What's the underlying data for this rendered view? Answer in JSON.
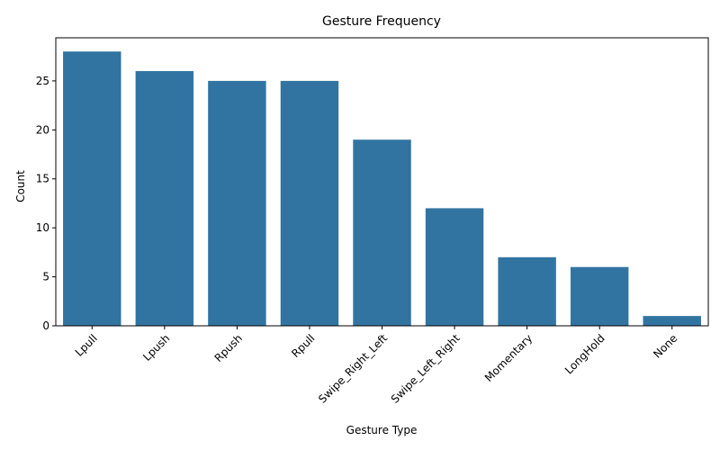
{
  "chart_data": {
    "type": "bar",
    "title": "Gesture Frequency",
    "xlabel": "Gesture Type",
    "ylabel": "Count",
    "categories": [
      "Lpull",
      "Lpush",
      "Rpush",
      "Rpull",
      "Swipe_Right_Left",
      "Swipe_Left_Right",
      "Momentary",
      "LongHold",
      "None"
    ],
    "values": [
      28,
      26,
      25,
      25,
      19,
      12,
      7,
      6,
      1
    ],
    "ylim": [
      0,
      29.4
    ],
    "yticks": [
      0,
      5,
      10,
      15,
      20,
      25
    ],
    "grid": false,
    "legend": "none",
    "bar_color": "#3274a1",
    "x_tick_rotation": 45
  }
}
